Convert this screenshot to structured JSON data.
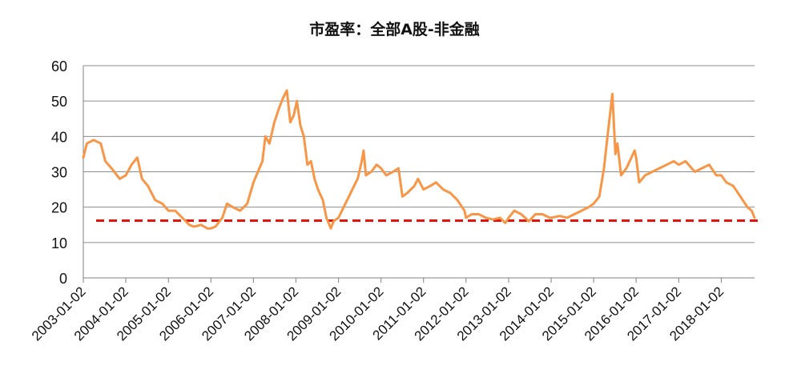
{
  "chart_data": {
    "type": "line",
    "title": "市盈率：全部A股-非金融",
    "xlabel": "",
    "ylabel": "",
    "ylim": [
      0,
      60
    ],
    "yticks": [
      0,
      10,
      20,
      30,
      40,
      50,
      60
    ],
    "xlim": [
      "2003-01-02",
      "2018-10-15"
    ],
    "xticks": [
      "2003-01-02",
      "2004-01-02",
      "2005-01-02",
      "2006-01-02",
      "2007-01-02",
      "2008-01-02",
      "2009-01-02",
      "2010-01-02",
      "2011-01-02",
      "2012-01-02",
      "2013-01-02",
      "2014-01-02",
      "2015-01-02",
      "2016-01-02",
      "2017-01-02",
      "2018-01-02"
    ],
    "grid": true,
    "colors": {
      "series": "#F79646",
      "reference": "#E3120B",
      "grid": "#8C8C8C"
    },
    "series": [
      {
        "values": [
          [
            "2003-01-02",
            34
          ],
          [
            "2003-02-01",
            38
          ],
          [
            "2003-04-01",
            39
          ],
          [
            "2003-06-01",
            38
          ],
          [
            "2003-07-10",
            33
          ],
          [
            "2003-09-01",
            31
          ],
          [
            "2003-11-10",
            28
          ],
          [
            "2004-01-02",
            29
          ],
          [
            "2004-02-20",
            32
          ],
          [
            "2004-04-10",
            34
          ],
          [
            "2004-05-20",
            28
          ],
          [
            "2004-07-10",
            26
          ],
          [
            "2004-09-10",
            22
          ],
          [
            "2004-11-10",
            21
          ],
          [
            "2005-01-02",
            19
          ],
          [
            "2005-03-01",
            19
          ],
          [
            "2005-05-01",
            17
          ],
          [
            "2005-07-01",
            15
          ],
          [
            "2005-08-10",
            14.5
          ],
          [
            "2005-10-10",
            15
          ],
          [
            "2005-12-01",
            14
          ],
          [
            "2006-01-02",
            14
          ],
          [
            "2006-02-10",
            14.5
          ],
          [
            "2006-04-10",
            17
          ],
          [
            "2006-05-20",
            21
          ],
          [
            "2006-07-10",
            20
          ],
          [
            "2006-09-10",
            19
          ],
          [
            "2006-11-10",
            21
          ],
          [
            "2007-01-02",
            27
          ],
          [
            "2007-02-10",
            30
          ],
          [
            "2007-03-20",
            33
          ],
          [
            "2007-04-15",
            40
          ],
          [
            "2007-05-20",
            38
          ],
          [
            "2007-07-01",
            44
          ],
          [
            "2007-08-10",
            48
          ],
          [
            "2007-09-15",
            51
          ],
          [
            "2007-10-16",
            53
          ],
          [
            "2007-11-15",
            44
          ],
          [
            "2007-12-15",
            46
          ],
          [
            "2008-01-10",
            50
          ],
          [
            "2008-02-10",
            43
          ],
          [
            "2008-03-10",
            40
          ],
          [
            "2008-04-10",
            32
          ],
          [
            "2008-05-10",
            33
          ],
          [
            "2008-06-10",
            28
          ],
          [
            "2008-07-10",
            25
          ],
          [
            "2008-08-20",
            22
          ],
          [
            "2008-09-20",
            17
          ],
          [
            "2008-10-28",
            14
          ],
          [
            "2008-11-20",
            16
          ],
          [
            "2009-01-02",
            17
          ],
          [
            "2009-02-15",
            20
          ],
          [
            "2009-04-01",
            23
          ],
          [
            "2009-05-15",
            26
          ],
          [
            "2009-06-15",
            28
          ],
          [
            "2009-07-20",
            33
          ],
          [
            "2009-08-05",
            36
          ],
          [
            "2009-08-25",
            29
          ],
          [
            "2009-10-10",
            30
          ],
          [
            "2009-11-25",
            32
          ],
          [
            "2010-01-02",
            31
          ],
          [
            "2010-02-15",
            29
          ],
          [
            "2010-04-15",
            30
          ],
          [
            "2010-06-01",
            31
          ],
          [
            "2010-07-05",
            23
          ],
          [
            "2010-08-15",
            24
          ],
          [
            "2010-10-15",
            26
          ],
          [
            "2010-11-15",
            28
          ],
          [
            "2011-01-02",
            25
          ],
          [
            "2011-03-01",
            26
          ],
          [
            "2011-04-20",
            27
          ],
          [
            "2011-06-20",
            25
          ],
          [
            "2011-08-20",
            24
          ],
          [
            "2011-10-20",
            22
          ],
          [
            "2011-12-20",
            19
          ],
          [
            "2012-01-02",
            17
          ],
          [
            "2012-02-20",
            18
          ],
          [
            "2012-04-20",
            18
          ],
          [
            "2012-06-20",
            17
          ],
          [
            "2012-08-20",
            16.5
          ],
          [
            "2012-10-20",
            17
          ],
          [
            "2012-12-04",
            15.5
          ],
          [
            "2013-01-02",
            17
          ],
          [
            "2013-02-20",
            19
          ],
          [
            "2013-04-20",
            18
          ],
          [
            "2013-06-25",
            16
          ],
          [
            "2013-08-20",
            18
          ],
          [
            "2013-10-20",
            18
          ],
          [
            "2013-12-20",
            17
          ],
          [
            "2014-01-02",
            17
          ],
          [
            "2014-03-20",
            17.5
          ],
          [
            "2014-05-20",
            17
          ],
          [
            "2014-07-20",
            18
          ],
          [
            "2014-09-20",
            19
          ],
          [
            "2014-11-20",
            20
          ],
          [
            "2015-01-02",
            21
          ],
          [
            "2015-02-20",
            23
          ],
          [
            "2015-04-01",
            31
          ],
          [
            "2015-05-01",
            40
          ],
          [
            "2015-06-12",
            52
          ],
          [
            "2015-07-08",
            35
          ],
          [
            "2015-07-25",
            38
          ],
          [
            "2015-08-26",
            29
          ],
          [
            "2015-10-10",
            31
          ],
          [
            "2015-12-20",
            36
          ],
          [
            "2016-01-02",
            34
          ],
          [
            "2016-01-28",
            27
          ],
          [
            "2016-03-20",
            29
          ],
          [
            "2016-05-20",
            30
          ],
          [
            "2016-07-20",
            31
          ],
          [
            "2016-09-20",
            32
          ],
          [
            "2016-11-20",
            33
          ],
          [
            "2017-01-02",
            32
          ],
          [
            "2017-03-01",
            33
          ],
          [
            "2017-05-20",
            30
          ],
          [
            "2017-07-20",
            31
          ],
          [
            "2017-09-20",
            32
          ],
          [
            "2017-11-20",
            29
          ],
          [
            "2018-01-02",
            29
          ],
          [
            "2018-02-15",
            27
          ],
          [
            "2018-04-15",
            26
          ],
          [
            "2018-06-15",
            23
          ],
          [
            "2018-08-15",
            20
          ],
          [
            "2018-09-20",
            19
          ],
          [
            "2018-10-15",
            17
          ]
        ]
      }
    ],
    "reference_line": {
      "y": 16.2,
      "style": "dashed"
    }
  }
}
